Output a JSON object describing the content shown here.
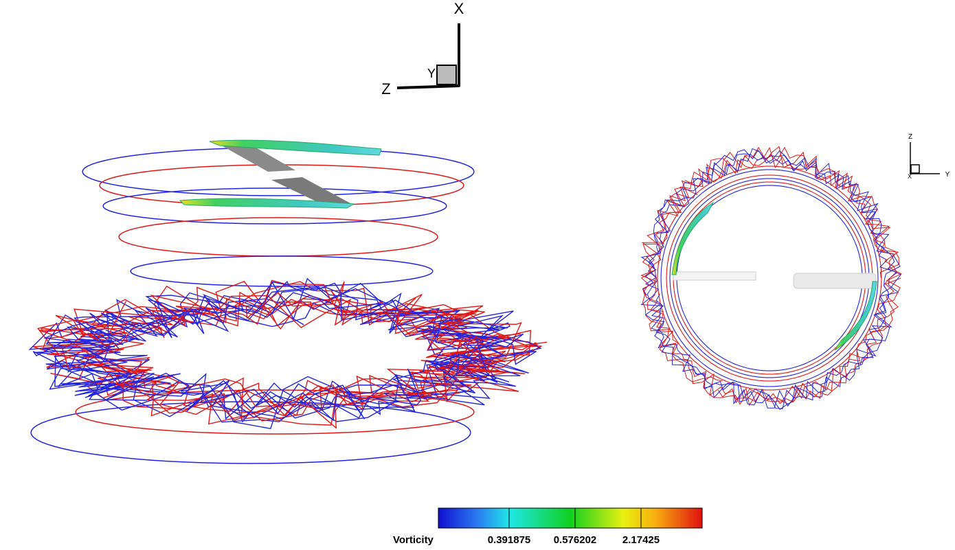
{
  "main_view": {
    "axis_labels": {
      "x": "X",
      "y": "Y",
      "z": "Z"
    }
  },
  "side_view": {
    "axis_labels": {
      "z": "Z",
      "y": "Y",
      "x": "X"
    }
  },
  "colorbar": {
    "title": "Vorticity",
    "labels": [
      "0.391875",
      "0.576202",
      "2.17425"
    ]
  }
}
